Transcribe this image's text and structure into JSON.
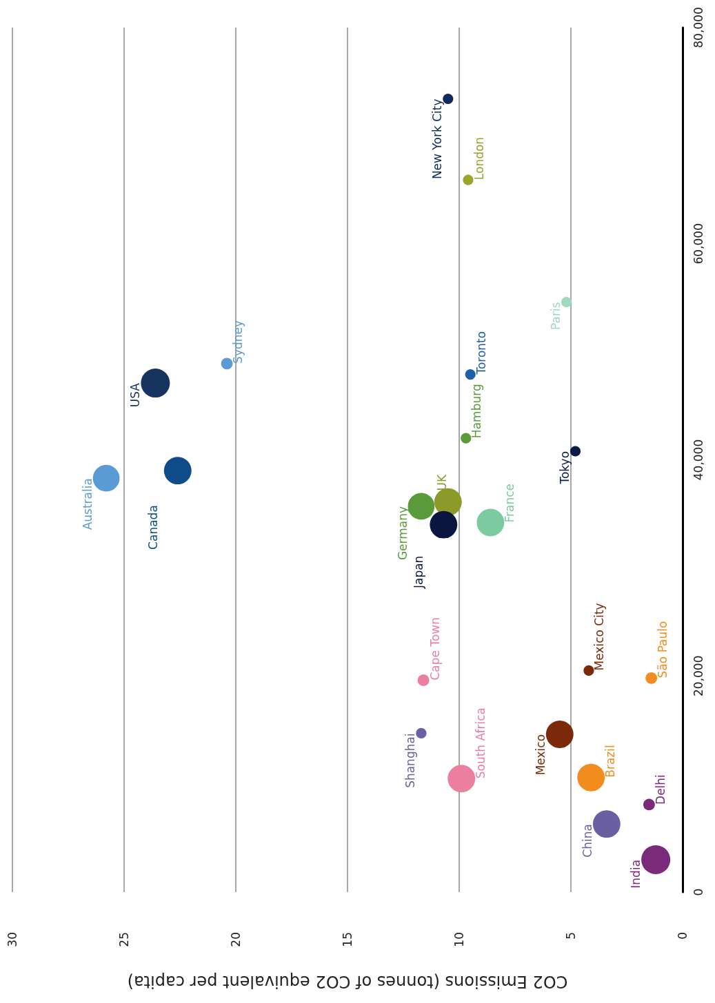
{
  "chart_data": {
    "type": "bubble",
    "xlabel": "CO2 Emissions (tonnes of CO2 equivalent per capita)",
    "ylim": [
      0,
      80000
    ],
    "yticks": [
      0,
      {
        "value": 20000,
        "label": "20,000"
      },
      {
        "value": 40000,
        "label": "40,000"
      },
      {
        "value": 60000,
        "label": "60,000"
      },
      {
        "value": 80000,
        "label": "80,000"
      }
    ],
    "xlim": [
      30,
      0
    ],
    "xticks": [
      0,
      5,
      10,
      15,
      20,
      25,
      30
    ],
    "grid": "x",
    "marker": "circle",
    "series": [
      {
        "name": "New York City",
        "color": "#0d2a5a",
        "x": [
          10.5
        ],
        "values": [
          73400
        ],
        "sizes": [
          0.13
        ]
      },
      {
        "name": "London",
        "color": "#9aa52a",
        "x": [
          9.6
        ],
        "values": [
          65900
        ],
        "sizes": [
          0.13
        ]
      },
      {
        "name": "Paris",
        "color": "#9fd8bc",
        "x": [
          5.2
        ],
        "values": [
          54600
        ],
        "sizes": [
          0.13
        ]
      },
      {
        "name": "Toronto",
        "color": "#1f5fa8",
        "x": [
          9.5
        ],
        "values": [
          47900
        ],
        "sizes": [
          0.13
        ]
      },
      {
        "name": "Sydney",
        "color": "#5b9bd5",
        "x": [
          20.4
        ],
        "values": [
          48900
        ],
        "sizes": [
          0.16
        ]
      },
      {
        "name": "USA",
        "color": "#17335f",
        "x": [
          23.6
        ],
        "values": [
          47100
        ],
        "sizes": [
          1
        ]
      },
      {
        "name": "Australia",
        "color": "#5b9bd5",
        "x": [
          25.8
        ],
        "values": [
          38300
        ],
        "sizes": [
          0.85
        ]
      },
      {
        "name": "Canada",
        "color": "#0f4c8a",
        "x": [
          22.6
        ],
        "values": [
          39000
        ],
        "sizes": [
          0.9
        ]
      },
      {
        "name": "Hamburg",
        "color": "#5a9a3a",
        "x": [
          9.7
        ],
        "values": [
          42000
        ],
        "sizes": [
          0.13
        ]
      },
      {
        "name": "Tokyo",
        "color": "#0b1a45",
        "x": [
          4.8
        ],
        "values": [
          40800
        ],
        "sizes": [
          0.13
        ]
      },
      {
        "name": "Germany",
        "color": "#5a9a3a",
        "x": [
          11.7
        ],
        "values": [
          35700
        ],
        "sizes": [
          0.85
        ]
      },
      {
        "name": "UK",
        "color": "#8c9a2a",
        "x": [
          10.5
        ],
        "values": [
          36100
        ],
        "sizes": [
          0.9
        ]
      },
      {
        "name": "Japan",
        "color": "#0a1640",
        "x": [
          10.7
        ],
        "values": [
          34000
        ],
        "sizes": [
          0.9
        ]
      },
      {
        "name": "France",
        "color": "#7ccba0",
        "x": [
          8.6
        ],
        "values": [
          34200
        ],
        "sizes": [
          0.9
        ]
      },
      {
        "name": "Mexico City",
        "color": "#7a2a0a",
        "x": [
          4.2
        ],
        "values": [
          20500
        ],
        "sizes": [
          0.13
        ]
      },
      {
        "name": "São Paulo",
        "color": "#f28c1e",
        "x": [
          1.4
        ],
        "values": [
          19800
        ],
        "sizes": [
          0.16
        ]
      },
      {
        "name": "Cape Town",
        "color": "#ec7fa0",
        "x": [
          11.6
        ],
        "values": [
          19600
        ],
        "sizes": [
          0.16
        ]
      },
      {
        "name": "Shanghai",
        "color": "#6a5fa0",
        "x": [
          11.7
        ],
        "values": [
          14700
        ],
        "sizes": [
          0.13
        ]
      },
      {
        "name": "Mexico",
        "color": "#7a2a0a",
        "x": [
          5.5
        ],
        "values": [
          14600
        ],
        "sizes": [
          0.9
        ]
      },
      {
        "name": "South Africa",
        "color": "#ec7fa0",
        "x": [
          9.9
        ],
        "values": [
          10500
        ],
        "sizes": [
          0.9
        ]
      },
      {
        "name": "Brazil",
        "color": "#f28c1e",
        "x": [
          4.1
        ],
        "values": [
          10600
        ],
        "sizes": [
          0.9
        ]
      },
      {
        "name": "Delhi",
        "color": "#7a2a7a",
        "x": [
          1.5
        ],
        "values": [
          8100
        ],
        "sizes": [
          0.16
        ]
      },
      {
        "name": "China",
        "color": "#6a5fa0",
        "x": [
          3.4
        ],
        "values": [
          6300
        ],
        "sizes": [
          0.9
        ]
      },
      {
        "name": "India",
        "color": "#7a2a7a",
        "x": [
          1.2
        ],
        "values": [
          3000
        ],
        "sizes": [
          1
        ]
      }
    ]
  }
}
